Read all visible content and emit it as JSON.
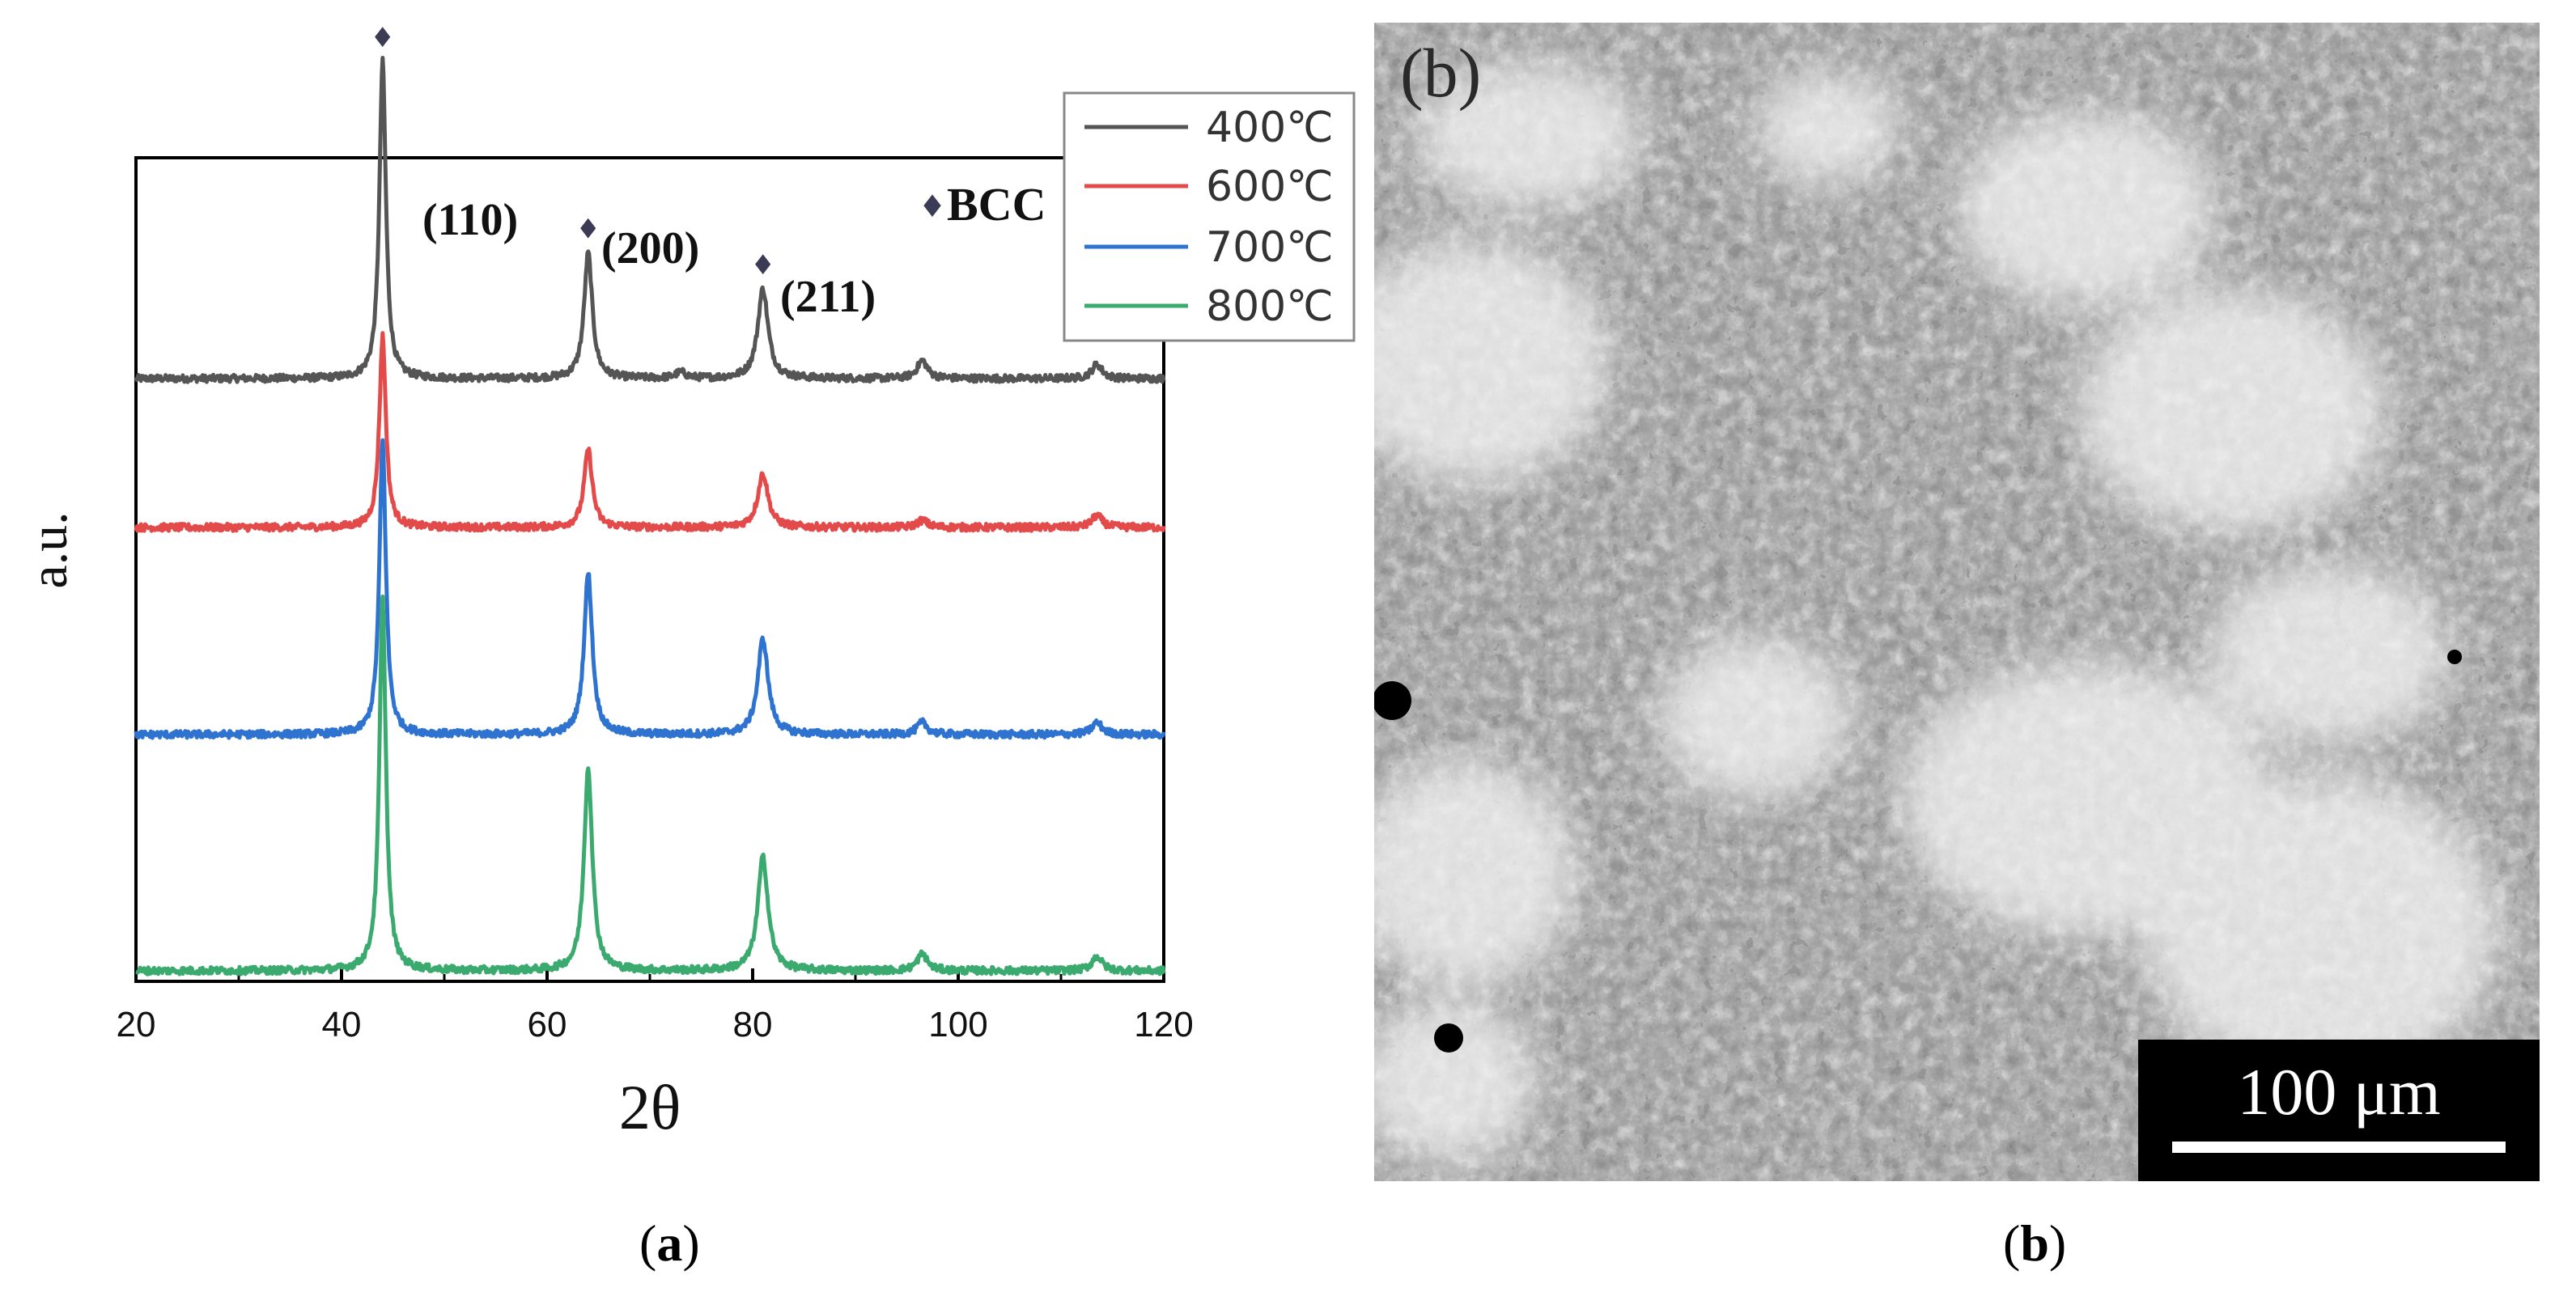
{
  "chart_data": {
    "type": "line",
    "xlabel": "2θ",
    "ylabel": "a.u.",
    "xlim": [
      20,
      120
    ],
    "xticks": [
      20,
      40,
      60,
      80,
      100,
      120
    ],
    "legend_position": "top-right",
    "peak_marker": "♦",
    "phase_legend": "BCC",
    "peak_labels": [
      {
        "text": "(110)",
        "x": 44
      },
      {
        "text": "(200)",
        "x": 64
      },
      {
        "text": "(211)",
        "x": 81
      }
    ],
    "series": [
      {
        "name": "400℃",
        "color": "#555555",
        "peaks": [
          {
            "x": 44,
            "height": 2.65
          },
          {
            "x": 64,
            "height": 1.05
          },
          {
            "x": 73,
            "height": 0.05
          },
          {
            "x": 81,
            "height": 0.75
          },
          {
            "x": 96.5,
            "height": 0.15
          },
          {
            "x": 113.5,
            "height": 0.12
          }
        ]
      },
      {
        "name": "600℃",
        "color": "#e34a4a",
        "peaks": [
          {
            "x": 44,
            "height": 1.6
          },
          {
            "x": 64,
            "height": 0.65
          },
          {
            "x": 81,
            "height": 0.45
          },
          {
            "x": 96.5,
            "height": 0.06
          },
          {
            "x": 113.5,
            "height": 0.1
          }
        ]
      },
      {
        "name": "700℃",
        "color": "#2f73d0",
        "peaks": [
          {
            "x": 44,
            "height": 2.45
          },
          {
            "x": 64,
            "height": 1.35
          },
          {
            "x": 81,
            "height": 0.8
          },
          {
            "x": 96.5,
            "height": 0.1
          },
          {
            "x": 113.5,
            "height": 0.1
          }
        ]
      },
      {
        "name": "800℃",
        "color": "#3aaa6e",
        "peaks": [
          {
            "x": 44,
            "height": 3.1
          },
          {
            "x": 64,
            "height": 1.7
          },
          {
            "x": 81,
            "height": 0.95
          },
          {
            "x": 96.5,
            "height": 0.14
          },
          {
            "x": 113.5,
            "height": 0.12
          }
        ]
      }
    ]
  },
  "micrograph": {
    "panel_tag": "(b)",
    "scale_bar": "100 μm"
  },
  "captions": {
    "a": "a",
    "b": "b"
  }
}
